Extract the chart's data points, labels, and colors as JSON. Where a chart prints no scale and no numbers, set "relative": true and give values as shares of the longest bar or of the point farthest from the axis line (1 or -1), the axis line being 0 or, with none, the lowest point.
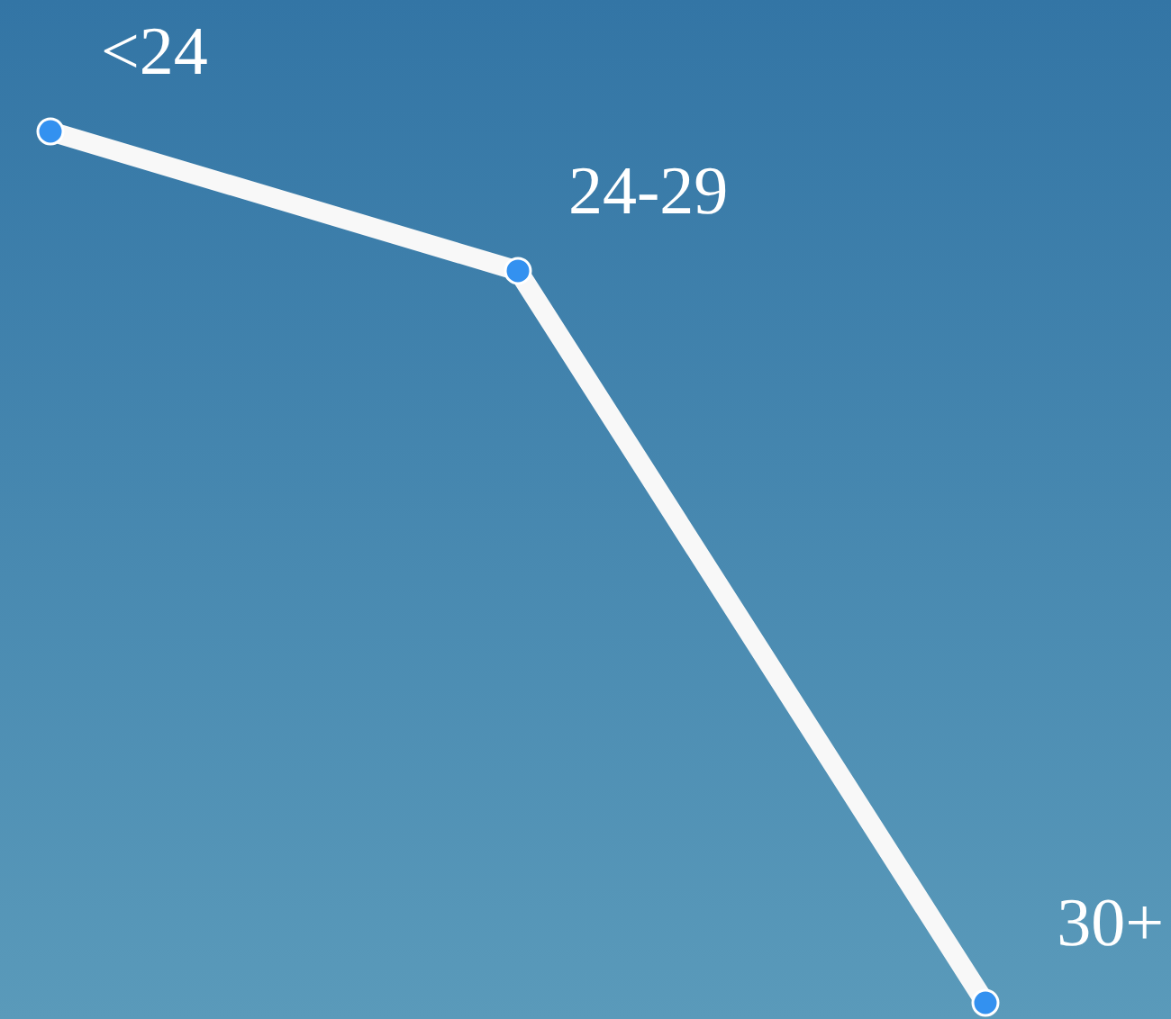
{
  "chart_data": {
    "type": "line",
    "categories": [
      "<24",
      "24-29",
      "30+"
    ],
    "relative": true,
    "series": [
      {
        "color": "#f8f8f8",
        "values": [
          1,
          0.84,
          0
        ]
      }
    ],
    "marker": "circle",
    "line_style": "solid",
    "tick_labels": "x"
  }
}
